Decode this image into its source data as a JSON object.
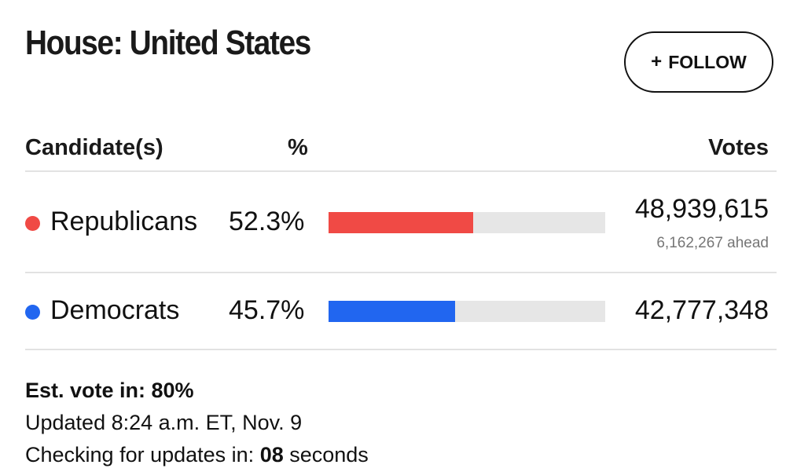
{
  "header": {
    "title": "House: United States",
    "follow_icon": "+",
    "follow_label": "FOLLOW"
  },
  "table": {
    "columns": [
      "Candidate(s)",
      "%",
      "Votes"
    ],
    "rows": [
      {
        "party": "Republicans",
        "percent": "52.3%",
        "share": 0.523,
        "votes": "48,939,615",
        "ahead": "6,162,267 ahead",
        "color": "#f04a45"
      },
      {
        "party": "Democrats",
        "percent": "45.7%",
        "share": 0.457,
        "votes": "42,777,348",
        "ahead": "",
        "color": "#2166f0"
      }
    ]
  },
  "footer": {
    "est_vote": "Est. vote in: 80%",
    "updated": "Updated 8:24 a.m. ET, Nov. 9",
    "checking_prefix": "Checking for updates in: ",
    "checking_count": "08",
    "checking_suffix": " seconds"
  }
}
